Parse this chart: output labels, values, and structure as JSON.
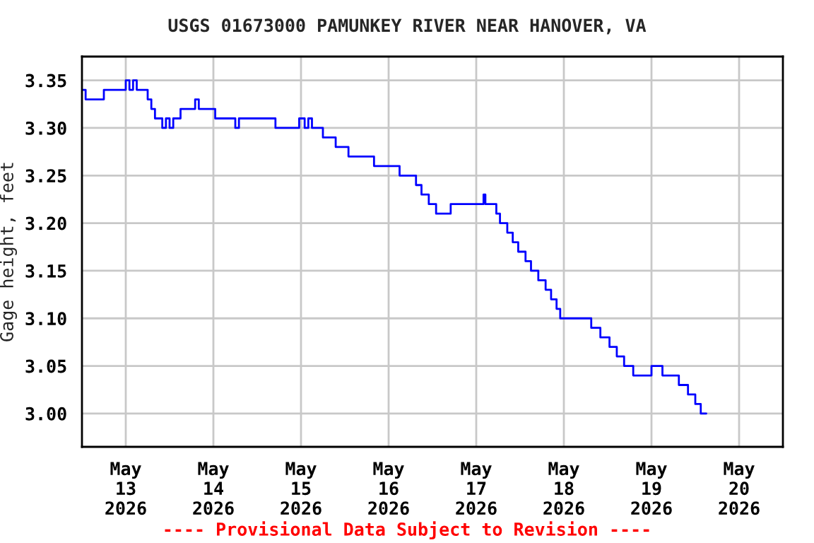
{
  "chart_data": {
    "type": "step",
    "title": "USGS 01673000 PAMUNKEY RIVER NEAR HANOVER, VA",
    "ylabel": "Gage height, feet",
    "annotations": [
      "---- Provisional Data Subject to Revision ----"
    ],
    "x": [
      "2026-05-12T12:00",
      "2026-05-12T13:00",
      "2026-05-12T18:00",
      "2026-05-13T00:00",
      "2026-05-13T01:00",
      "2026-05-13T02:00",
      "2026-05-13T03:00",
      "2026-05-13T06:00",
      "2026-05-13T07:00",
      "2026-05-13T08:00",
      "2026-05-13T10:00",
      "2026-05-13T11:00",
      "2026-05-13T12:00",
      "2026-05-13T13:00",
      "2026-05-13T15:00",
      "2026-05-13T19:00",
      "2026-05-13T20:00",
      "2026-05-14T00:30",
      "2026-05-14T06:00",
      "2026-05-14T07:00",
      "2026-05-14T08:00",
      "2026-05-14T17:00",
      "2026-05-14T23:30",
      "2026-05-15T01:00",
      "2026-05-15T02:00",
      "2026-05-15T03:00",
      "2026-05-15T06:00",
      "2026-05-15T09:30",
      "2026-05-15T13:00",
      "2026-05-15T20:00",
      "2026-05-16T03:00",
      "2026-05-16T07:30",
      "2026-05-16T09:00",
      "2026-05-16T11:00",
      "2026-05-16T13:00",
      "2026-05-16T17:00",
      "2026-05-17T02:00",
      "2026-05-17T02:30",
      "2026-05-17T05:30",
      "2026-05-17T06:30",
      "2026-05-17T08:30",
      "2026-05-17T10:00",
      "2026-05-17T11:30",
      "2026-05-17T13:30",
      "2026-05-17T15:00",
      "2026-05-17T17:00",
      "2026-05-17T19:00",
      "2026-05-17T20:30",
      "2026-05-17T22:00",
      "2026-05-17T23:00",
      "2026-05-18T07:30",
      "2026-05-18T10:00",
      "2026-05-18T12:30",
      "2026-05-18T14:30",
      "2026-05-18T16:30",
      "2026-05-18T19:00",
      "2026-05-19T00:00",
      "2026-05-19T03:00",
      "2026-05-19T07:30",
      "2026-05-19T10:00",
      "2026-05-19T12:00",
      "2026-05-19T13:30",
      "2026-05-19T15:00"
    ],
    "series": [
      {
        "color": "#0000ff",
        "values": [
          3.34,
          3.33,
          3.34,
          3.35,
          3.34,
          3.35,
          3.34,
          3.33,
          3.32,
          3.31,
          3.3,
          3.31,
          3.3,
          3.31,
          3.32,
          3.33,
          3.32,
          3.31,
          3.3,
          3.31,
          3.31,
          3.3,
          3.31,
          3.3,
          3.31,
          3.3,
          3.29,
          3.28,
          3.27,
          3.26,
          3.25,
          3.24,
          3.23,
          3.22,
          3.21,
          3.22,
          3.23,
          3.22,
          3.21,
          3.2,
          3.19,
          3.18,
          3.17,
          3.16,
          3.15,
          3.14,
          3.13,
          3.12,
          3.11,
          3.1,
          3.09,
          3.08,
          3.07,
          3.06,
          3.05,
          3.04,
          3.05,
          3.04,
          3.03,
          3.02,
          3.01,
          3.0,
          3.0
        ]
      }
    ],
    "xlim": [
      "2026-05-12T12:00",
      "2026-05-20T12:00"
    ],
    "xticks": [
      {
        "value": "2026-05-13",
        "label": "May\n13\n2026"
      },
      {
        "value": "2026-05-14",
        "label": "May\n14\n2026"
      },
      {
        "value": "2026-05-15",
        "label": "May\n15\n2026"
      },
      {
        "value": "2026-05-16",
        "label": "May\n16\n2026"
      },
      {
        "value": "2026-05-17",
        "label": "May\n17\n2026"
      },
      {
        "value": "2026-05-18",
        "label": "May\n18\n2026"
      },
      {
        "value": "2026-05-19",
        "label": "May\n19\n2026"
      },
      {
        "value": "2026-05-20",
        "label": "May\n20\n2026"
      }
    ],
    "ylim": [
      2.965,
      3.375
    ],
    "yticks": [
      {
        "value": 3.0,
        "label": "3.00"
      },
      {
        "value": 3.05,
        "label": "3.05"
      },
      {
        "value": 3.1,
        "label": "3.10"
      },
      {
        "value": 3.15,
        "label": "3.15"
      },
      {
        "value": 3.2,
        "label": "3.20"
      },
      {
        "value": 3.25,
        "label": "3.25"
      },
      {
        "value": 3.3,
        "label": "3.30"
      },
      {
        "value": 3.35,
        "label": "3.35"
      }
    ],
    "grid": true
  }
}
